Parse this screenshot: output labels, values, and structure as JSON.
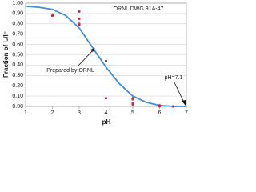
{
  "chart_data": {
    "type": "scatter",
    "annotation_top": "ORNL DWG 91A-47",
    "annotation_curve": "Prepared by ORNL",
    "annotation_ph": "pH=7.1",
    "xlabel": "pH",
    "ylabel": "Fraction of I₂/I⁻",
    "xlim": [
      1,
      7
    ],
    "ylim": [
      0,
      1
    ],
    "xticks": [
      1,
      2,
      3,
      4,
      5,
      6,
      7
    ],
    "yticks": [
      {
        "value": 0,
        "label": "0.00"
      },
      {
        "value": 0.1,
        "label": "0.10"
      },
      {
        "value": 0.2,
        "label": "0.20"
      },
      {
        "value": 0.3,
        "label": "0.30"
      },
      {
        "value": 0.4,
        "label": "0.40"
      },
      {
        "value": 0.5,
        "label": "0.50"
      },
      {
        "value": 0.6,
        "label": "0.60"
      },
      {
        "value": 0.7,
        "label": "0.70"
      },
      {
        "value": 0.8,
        "label": "0.80"
      },
      {
        "value": 0.9,
        "label": "0.90"
      },
      {
        "value": 1,
        "label": "1.00"
      }
    ],
    "grid": true,
    "points": {
      "color": "#c0304a",
      "x": [
        2,
        2,
        3,
        3,
        3,
        3,
        4,
        4,
        5,
        5,
        5,
        5,
        6,
        6,
        6.5
      ],
      "y": [
        0.89,
        0.88,
        0.92,
        0.85,
        0.8,
        0.79,
        0.44,
        0.08,
        0.08,
        0.07,
        0.03,
        0.02,
        0.01,
        0.0,
        0.0
      ]
    },
    "curve": {
      "color": "#3f8fd8",
      "x": [
        1,
        1.5,
        2,
        2.5,
        3,
        3.5,
        4,
        4.5,
        5,
        5.5,
        6,
        6.5,
        7
      ],
      "y": [
        0.97,
        0.96,
        0.94,
        0.88,
        0.76,
        0.57,
        0.38,
        0.22,
        0.1,
        0.04,
        0.01,
        0.0,
        0.0
      ]
    }
  }
}
